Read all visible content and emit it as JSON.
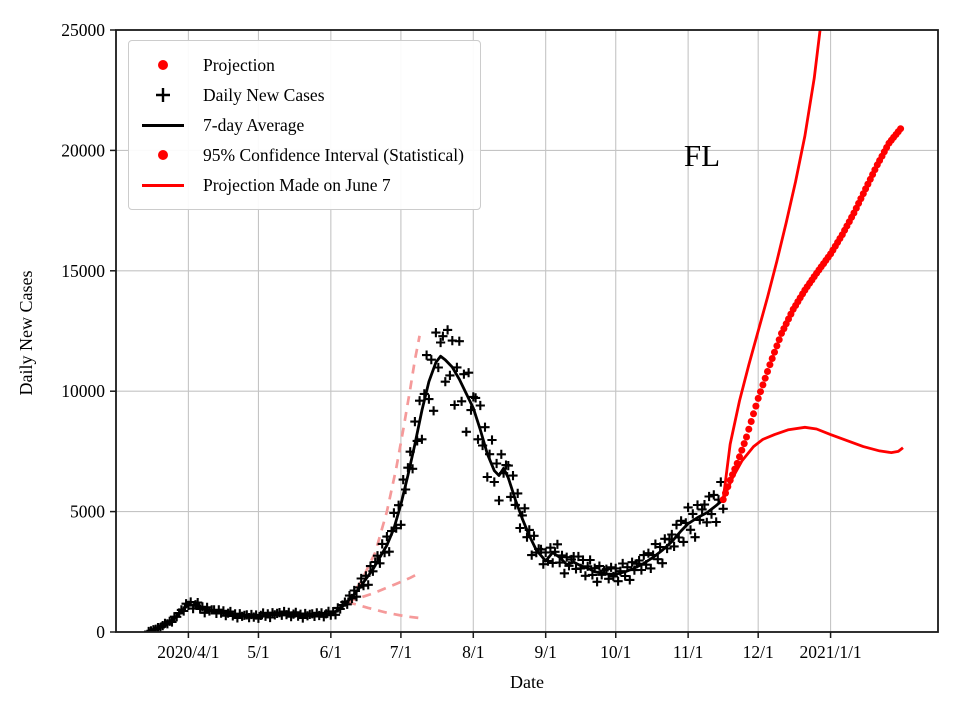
{
  "colors": {
    "background": "#ffffff",
    "grid": "#c4c4c4",
    "frame": "#1a1a1a",
    "projection_red": "#ff0000",
    "june_projection_pink": "#f59a9a",
    "average_black": "#000000",
    "legend_border": "#cccccc"
  },
  "legend": {
    "items": [
      {
        "label": "Projection",
        "marker": "dot",
        "color": "#ff0000"
      },
      {
        "label": "Daily New Cases",
        "marker": "plus",
        "color": "#000000"
      },
      {
        "label": "7-day Average",
        "marker": "line",
        "color": "#000000"
      },
      {
        "label": "95% Confidence Interval (Statistical)",
        "marker": "dot",
        "color": "#ff0000"
      },
      {
        "label": "Projection Made on June 7",
        "marker": "line",
        "color": "#ff0000"
      }
    ]
  },
  "chart_data": {
    "type": "line",
    "title": "",
    "xlabel": "Date",
    "ylabel": "Daily New Cases",
    "annotation": {
      "text": "FL"
    },
    "grid": true,
    "legend_position": "upper left",
    "x_axis": {
      "unit": "days since 2020-03-01",
      "min": 0,
      "max": 352,
      "ticks": [
        {
          "day": 31,
          "label": "2020/4/1"
        },
        {
          "day": 61,
          "label": "5/1"
        },
        {
          "day": 92,
          "label": "6/1"
        },
        {
          "day": 122,
          "label": "7/1"
        },
        {
          "day": 153,
          "label": "8/1"
        },
        {
          "day": 184,
          "label": "9/1"
        },
        {
          "day": 214,
          "label": "10/1"
        },
        {
          "day": 245,
          "label": "11/1"
        },
        {
          "day": 275,
          "label": "12/1"
        },
        {
          "day": 306,
          "label": "2021/1/1"
        }
      ]
    },
    "y_axis": {
      "min": 0,
      "max": 25000,
      "ticks": [
        0,
        5000,
        10000,
        15000,
        20000,
        25000
      ]
    },
    "series": [
      {
        "name": "7-day Average",
        "style": "line",
        "color": "#000000",
        "width": 2.8,
        "points": [
          [
            14,
            20
          ],
          [
            17,
            120
          ],
          [
            20,
            260
          ],
          [
            23,
            420
          ],
          [
            26,
            650
          ],
          [
            29,
            950
          ],
          [
            31,
            1150
          ],
          [
            34,
            1100
          ],
          [
            38,
            950
          ],
          [
            42,
            850
          ],
          [
            46,
            800
          ],
          [
            50,
            720
          ],
          [
            55,
            660
          ],
          [
            60,
            640
          ],
          [
            64,
            700
          ],
          [
            68,
            730
          ],
          [
            72,
            760
          ],
          [
            76,
            720
          ],
          [
            80,
            690
          ],
          [
            84,
            700
          ],
          [
            88,
            720
          ],
          [
            92,
            750
          ],
          [
            95,
            900
          ],
          [
            98,
            1150
          ],
          [
            101,
            1450
          ],
          [
            104,
            1800
          ],
          [
            107,
            2200
          ],
          [
            110,
            2600
          ],
          [
            113,
            3100
          ],
          [
            116,
            3600
          ],
          [
            119,
            4300
          ],
          [
            122,
            5300
          ],
          [
            125,
            6500
          ],
          [
            128,
            7800
          ],
          [
            131,
            9200
          ],
          [
            134,
            10400
          ],
          [
            137,
            11200
          ],
          [
            139,
            11450
          ],
          [
            141,
            11300
          ],
          [
            144,
            11000
          ],
          [
            147,
            10500
          ],
          [
            150,
            9900
          ],
          [
            153,
            9300
          ],
          [
            156,
            8400
          ],
          [
            159,
            7400
          ],
          [
            162,
            6700
          ],
          [
            164,
            6500
          ],
          [
            166,
            6800
          ],
          [
            168,
            6400
          ],
          [
            171,
            5500
          ],
          [
            174,
            4700
          ],
          [
            177,
            4000
          ],
          [
            180,
            3400
          ],
          [
            184,
            2950
          ],
          [
            187,
            3300
          ],
          [
            190,
            3100
          ],
          [
            193,
            2800
          ],
          [
            196,
            2900
          ],
          [
            199,
            2750
          ],
          [
            202,
            2650
          ],
          [
            205,
            2500
          ],
          [
            208,
            2450
          ],
          [
            211,
            2400
          ],
          [
            214,
            2400
          ],
          [
            218,
            2500
          ],
          [
            222,
            2650
          ],
          [
            226,
            2850
          ],
          [
            230,
            3100
          ],
          [
            234,
            3400
          ],
          [
            238,
            3750
          ],
          [
            242,
            4200
          ],
          [
            245,
            4500
          ],
          [
            249,
            4750
          ],
          [
            253,
            4950
          ],
          [
            257,
            5250
          ],
          [
            260,
            5500
          ]
        ]
      },
      {
        "name": "Daily New Cases",
        "style": "scatter-plus",
        "color": "#000000",
        "marker_half_size": 4.6,
        "marker_stroke": 2.1,
        "derive_from": "7-day Average",
        "day_start": 14,
        "day_end": 260,
        "noise_pattern": [
          1.08,
          0.92,
          1.12,
          0.96,
          1.1,
          0.87,
          1.03,
          1.15,
          0.93,
          1.06,
          0.84,
          1.11,
          0.97,
          1.05
        ]
      },
      {
        "name": "Projection",
        "style": "dots",
        "color": "#ff0000",
        "dot_radius": 3.5,
        "points": [
          [
            260,
            5500
          ],
          [
            263,
            6300
          ],
          [
            266,
            7000
          ],
          [
            270,
            8100
          ],
          [
            275,
            9700
          ],
          [
            280,
            11100
          ],
          [
            285,
            12400
          ],
          [
            290,
            13400
          ],
          [
            295,
            14200
          ],
          [
            300,
            14900
          ],
          [
            306,
            15700
          ],
          [
            311,
            16500
          ],
          [
            316,
            17400
          ],
          [
            321,
            18400
          ],
          [
            326,
            19400
          ],
          [
            331,
            20300
          ],
          [
            336,
            20900
          ]
        ]
      },
      {
        "name": "95% Confidence Interval Upper",
        "style": "line",
        "color": "#ff0000",
        "width": 2.8,
        "points": [
          [
            260,
            5500
          ],
          [
            263,
            7800
          ],
          [
            267,
            9600
          ],
          [
            271,
            11100
          ],
          [
            275,
            12500
          ],
          [
            279,
            13900
          ],
          [
            283,
            15400
          ],
          [
            287,
            17000
          ],
          [
            291,
            18700
          ],
          [
            295,
            20600
          ],
          [
            299,
            23000
          ],
          [
            302,
            25400
          ]
        ]
      },
      {
        "name": "95% Confidence Interval Lower",
        "style": "line",
        "color": "#ff0000",
        "width": 2.8,
        "points": [
          [
            260,
            5500
          ],
          [
            264,
            6400
          ],
          [
            268,
            7100
          ],
          [
            273,
            7700
          ],
          [
            277,
            8000
          ],
          [
            282,
            8200
          ],
          [
            288,
            8400
          ],
          [
            295,
            8500
          ],
          [
            300,
            8430
          ],
          [
            306,
            8200
          ],
          [
            313,
            7950
          ],
          [
            320,
            7700
          ],
          [
            327,
            7520
          ],
          [
            332,
            7450
          ],
          [
            335,
            7500
          ],
          [
            337,
            7650
          ]
        ]
      },
      {
        "name": "Projection Made on June 7 Upper",
        "style": "dashed",
        "color": "#f59a9a",
        "width": 2.7,
        "points": [
          [
            99,
            1250
          ],
          [
            105,
            2100
          ],
          [
            111,
            3300
          ],
          [
            116,
            5000
          ],
          [
            120,
            6800
          ],
          [
            123,
            8400
          ],
          [
            126,
            10100
          ],
          [
            128,
            11300
          ],
          [
            130,
            12300
          ]
        ]
      },
      {
        "name": "Projection Made on June 7 Mid",
        "style": "dashed",
        "color": "#f59a9a",
        "width": 2.7,
        "points": [
          [
            99,
            1250
          ],
          [
            110,
            1600
          ],
          [
            120,
            2000
          ],
          [
            126,
            2250
          ],
          [
            130,
            2450
          ]
        ]
      },
      {
        "name": "Projection Made on June 7 Lower",
        "style": "dashed",
        "color": "#f59a9a",
        "width": 2.7,
        "points": [
          [
            99,
            1250
          ],
          [
            108,
            1000
          ],
          [
            116,
            800
          ],
          [
            124,
            650
          ],
          [
            130,
            580
          ]
        ]
      }
    ]
  }
}
